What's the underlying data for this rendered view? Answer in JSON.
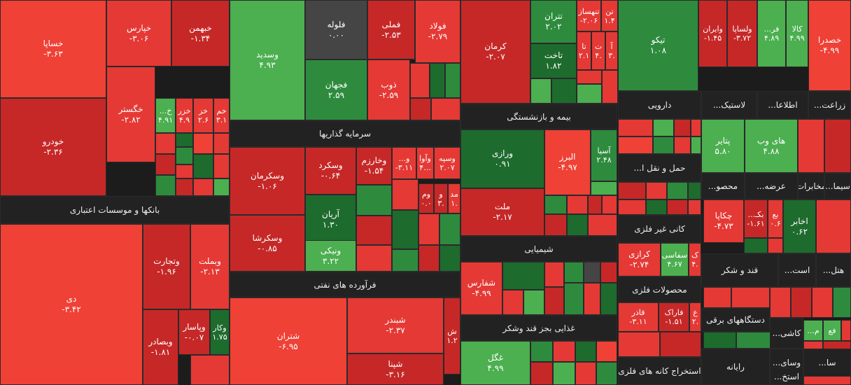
{
  "colors": {
    "red_dark": "#c62828",
    "red": "#e53935",
    "red_light": "#ef4136",
    "green_dark": "#1e6b2e",
    "green": "#2e8b3e",
    "green_light": "#4caf50",
    "gray": "#454545",
    "header": "#222222"
  },
  "headers": [
    {
      "id": "banks",
      "label": "بانکها و موسسات اعتباری"
    },
    {
      "id": "investment",
      "label": "سرمایه گذاریها"
    },
    {
      "id": "refinery",
      "label": "فرآورده های نفتی"
    },
    {
      "id": "insurance",
      "label": "بیمه و بازنشستگی"
    },
    {
      "id": "chemical",
      "label": "شیمیایی"
    },
    {
      "id": "food_nonsugar",
      "label": "غذایی بجز قند وشکر"
    },
    {
      "id": "pharma",
      "label": "دارویی"
    },
    {
      "id": "plastic",
      "label": "لاستیک..."
    },
    {
      "id": "info",
      "label": "اطلاعا..."
    },
    {
      "id": "agri",
      "label": "زراعت..."
    },
    {
      "id": "transport",
      "label": "حمل و نقل ا..."
    },
    {
      "id": "cement",
      "label": "سیما..."
    },
    {
      "id": "contracting",
      "label": "مخابرات"
    },
    {
      "id": "offer",
      "label": "عرضه..."
    },
    {
      "id": "products",
      "label": "محصو..."
    },
    {
      "id": "nonmetal",
      "label": "کانی غیر فلزی"
    },
    {
      "id": "metalproducts",
      "label": "محصولات فلزی"
    },
    {
      "id": "mining",
      "label": "استخراج کانه های فلزی"
    },
    {
      "id": "sugar",
      "label": "قند و شکر"
    },
    {
      "id": "ast",
      "label": "است..."
    },
    {
      "id": "hotel",
      "label": "هتل..."
    },
    {
      "id": "appliances",
      "label": "دستگاههای برقی"
    },
    {
      "id": "tile",
      "label": "کاشی..."
    },
    {
      "id": "computer",
      "label": "رایانه"
    },
    {
      "id": "vehicles",
      "label": "وسای..."
    },
    {
      "id": "sa",
      "label": "سا..."
    },
    {
      "id": "extract",
      "label": "استخ..."
    }
  ],
  "tiles": [
    {
      "name": "خساپا",
      "value": "-۳.۶۳"
    },
    {
      "name": "خپارس",
      "value": "-۳.۰۶"
    },
    {
      "name": "خبهمن",
      "value": "-۱.۳۴"
    },
    {
      "name": "خودرو",
      "value": "-۲.۳۶"
    },
    {
      "name": "خگستر",
      "value": "-۲.۸۲"
    },
    {
      "name": "خ...",
      "value": "۴.۹۱"
    },
    {
      "name": "خزر",
      "value": "۴.۹"
    },
    {
      "name": "خز",
      "value": "۲.۶"
    },
    {
      "name": "خم",
      "value": "۳.۱"
    },
    {
      "name": "دی",
      "value": "-۳.۴۲"
    },
    {
      "name": "وتجارت",
      "value": "-۱.۹۶"
    },
    {
      "name": "وبملت",
      "value": "-۲.۱۳"
    },
    {
      "name": "وپاسار",
      "value": "-۰.۰۷"
    },
    {
      "name": "وکار",
      "value": "۱.۷۵"
    },
    {
      "name": "وبصادر",
      "value": "-۱.۸۱"
    },
    {
      "name": "وسدید",
      "value": "۴.۹۳"
    },
    {
      "name": "فلوله",
      "value": "۰.۰۰"
    },
    {
      "name": "فملی",
      "value": "-۲.۵۳"
    },
    {
      "name": "فولاد",
      "value": "-۲.۷۹"
    },
    {
      "name": "فجهان",
      "value": "۲.۵۹"
    },
    {
      "name": "ذوب",
      "value": "-۲.۵۹"
    },
    {
      "name": "وسکرمان",
      "value": "-۱.۰۶"
    },
    {
      "name": "وسکرد",
      "value": "-۰.۶۴"
    },
    {
      "name": "وخارزم",
      "value": "-۱.۵۴"
    },
    {
      "name": "و...",
      "value": "-۳.۱۱"
    },
    {
      "name": "وآوا",
      "value": "۴..."
    },
    {
      "name": "وسپه",
      "value": "۲.۰۷"
    },
    {
      "name": "آریان",
      "value": "۱.۳۰"
    },
    {
      "name": "وسکرشا",
      "value": "-۰.۸۵"
    },
    {
      "name": "ونیکی",
      "value": "۳.۲۲"
    },
    {
      "name": "وم",
      "value": "۰.۰"
    },
    {
      "name": "و",
      "value": "۳."
    },
    {
      "name": "مد",
      "value": "۱."
    },
    {
      "name": "شتران",
      "value": "-۶.۹۵"
    },
    {
      "name": "شبندر",
      "value": "-۲.۳۷"
    },
    {
      "name": "ش",
      "value": "۱.۲"
    },
    {
      "name": "شپنا",
      "value": "-۳.۱۶"
    },
    {
      "name": "کرمان",
      "value": "-۲.۰۷"
    },
    {
      "name": "تتران",
      "value": "۲.۰۲"
    },
    {
      "name": "تاخت",
      "value": "۱.۸۲"
    },
    {
      "name": "تنهساز",
      "value": "-۲.۰۶"
    },
    {
      "name": "تن",
      "value": "۱.۴"
    },
    {
      "name": "تا",
      "value": "۲.۱"
    },
    {
      "name": "ت",
      "value": "۴."
    },
    {
      "name": "آ",
      "value": "۳."
    },
    {
      "name": "ورازی",
      "value": "۰.۹۱"
    },
    {
      "name": "البرز",
      "value": "-۴.۹۷"
    },
    {
      "name": "آسیا",
      "value": "۲.۴۸"
    },
    {
      "name": "ملت",
      "value": "-۲.۱۷"
    },
    {
      "name": "شفارس",
      "value": "-۴.۹۹"
    },
    {
      "name": "غگل",
      "value": "۴.۹۹"
    },
    {
      "name": "تیکو",
      "value": "۱.۰۸"
    },
    {
      "name": "وایران",
      "value": "-۱.۴۵"
    },
    {
      "name": "ولساپا",
      "value": "-۳.۷۲"
    },
    {
      "name": "فر...",
      "value": "۴.۸۹"
    },
    {
      "name": "کالا",
      "value": "۴.۹۹"
    },
    {
      "name": "خصدرا",
      "value": "-۴.۹۹"
    },
    {
      "name": "پتایر",
      "value": "۵.۸۰"
    },
    {
      "name": "های وب",
      "value": "۴.۸۸"
    },
    {
      "name": "چکاپا",
      "value": "-۴.۷۳"
    },
    {
      "name": "بکـ...",
      "value": "-۱.۶۱"
    },
    {
      "name": "بع",
      "value": "۰.۶"
    },
    {
      "name": "اخابر",
      "value": "۰.۶۲"
    },
    {
      "name": "کرازی",
      "value": "-۲.۷۴"
    },
    {
      "name": "سفاسی",
      "value": "۴.۶۷"
    },
    {
      "name": "ک",
      "value": "۴."
    },
    {
      "name": "قاذر",
      "value": "-۳.۱۱"
    },
    {
      "name": "فاراک",
      "value": "-۱.۵۱"
    },
    {
      "name": "ع",
      "value": "۲."
    },
    {
      "name": "م...",
      "value": ""
    },
    {
      "name": "فع",
      "value": ""
    }
  ]
}
